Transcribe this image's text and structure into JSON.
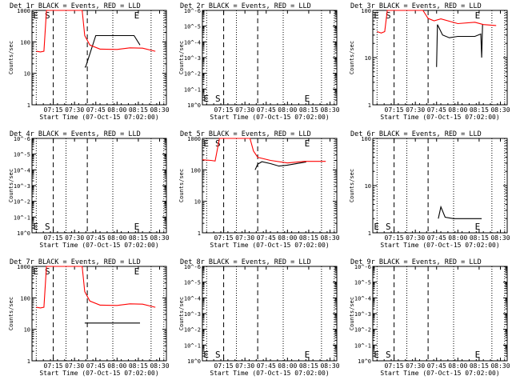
{
  "panels_shared": {
    "ylabel": "Counts/sec",
    "xlabel": "Start Time (07-Oct-15 07:02:00)",
    "x_ticks": [
      "07:15",
      "07:30",
      "07:45",
      "08:00",
      "08:15",
      "08:30"
    ],
    "start_marker": "S",
    "end_marker": "E",
    "colors": {
      "events": "#000000",
      "lld": "#ff0000"
    }
  },
  "chart_data": [
    {
      "type": "line",
      "title": "Det 1r BLACK = Events, RED = LLD",
      "scale": "log",
      "yticks": [
        "1",
        "10",
        "100",
        "1000"
      ],
      "series": [
        {
          "name": "BLACK = Events",
          "points": [
            [
              7.62,
              1.2
            ],
            [
              7.63,
              1.2
            ],
            [
              7.75,
              2.2
            ],
            [
              8.2,
              2.2
            ],
            [
              8.27,
              1.9
            ]
          ]
        },
        {
          "name": "RED = LLD",
          "points": [
            [
              7.05,
              1.7
            ],
            [
              7.1,
              1.68
            ],
            [
              7.14,
              1.7
            ],
            [
              7.17,
              3.0
            ],
            [
              7.18,
              3.0
            ],
            [
              7.59,
              3.0
            ],
            [
              7.62,
              2.2
            ],
            [
              7.68,
              1.9
            ],
            [
              7.8,
              1.77
            ],
            [
              8.0,
              1.76
            ],
            [
              8.15,
              1.81
            ],
            [
              8.3,
              1.8
            ],
            [
              8.45,
              1.7
            ]
          ]
        }
      ]
    },
    {
      "type": "line",
      "title": "Det 2r BLACK = Events, RED = LLD",
      "scale": "log",
      "yticks": [
        "10^0",
        "10^-1",
        "10^-2",
        "10^-3",
        "10^-4",
        "10^-5",
        "10^-6"
      ],
      "series": []
    },
    {
      "type": "line",
      "title": "Det 3r BLACK = Events, RED = LLD",
      "scale": "log",
      "yticks": [
        "1",
        "10",
        "100"
      ],
      "series": [
        {
          "name": "BLACK = Events",
          "points": [
            [
              7.75,
              0.8
            ],
            [
              7.76,
              1.7
            ],
            [
              7.82,
              1.48
            ],
            [
              7.9,
              1.42
            ],
            [
              8.0,
              1.45
            ],
            [
              8.2,
              1.45
            ],
            [
              8.27,
              1.5
            ],
            [
              8.28,
              1.0
            ],
            [
              8.29,
              1.7
            ]
          ]
        },
        {
          "name": "RED = LLD",
          "points": [
            [
              7.05,
              1.55
            ],
            [
              7.1,
              1.52
            ],
            [
              7.14,
              1.55
            ],
            [
              7.17,
              2.0
            ],
            [
              7.59,
              2.0
            ],
            [
              7.65,
              1.83
            ],
            [
              7.72,
              1.78
            ],
            [
              7.8,
              1.82
            ],
            [
              8.0,
              1.72
            ],
            [
              8.2,
              1.75
            ],
            [
              8.3,
              1.7
            ],
            [
              8.45,
              1.68
            ]
          ]
        }
      ]
    },
    {
      "type": "line",
      "title": "Det 4r BLACK = Events, RED = LLD",
      "scale": "log",
      "yticks": [
        "10^0",
        "10^-1",
        "10^-2",
        "10^-3",
        "10^-4",
        "10^-5",
        "10^-6"
      ],
      "series": []
    },
    {
      "type": "line",
      "title": "Det 5r BLACK = Events, RED = LLD",
      "scale": "log",
      "yticks": [
        "1",
        "10",
        "100",
        "1000"
      ],
      "series": [
        {
          "name": "BLACK = Events",
          "points": [
            [
              7.62,
              2.0
            ],
            [
              7.65,
              2.18
            ],
            [
              7.7,
              2.26
            ],
            [
              7.8,
              2.2
            ],
            [
              7.9,
              2.12
            ],
            [
              8.0,
              2.15
            ],
            [
              8.15,
              2.22
            ],
            [
              8.22,
              2.25
            ]
          ]
        },
        {
          "name": "RED = LLD",
          "points": [
            [
              7.0,
              2.32
            ],
            [
              7.1,
              2.3
            ],
            [
              7.15,
              2.28
            ],
            [
              7.2,
              3.0
            ],
            [
              7.56,
              3.0
            ],
            [
              7.6,
              2.6
            ],
            [
              7.65,
              2.4
            ],
            [
              7.8,
              2.3
            ],
            [
              8.0,
              2.22
            ],
            [
              8.2,
              2.27
            ],
            [
              8.45,
              2.27
            ]
          ]
        }
      ]
    },
    {
      "type": "line",
      "title": "Det 6r BLACK = Events, RED = LLD",
      "scale": "log",
      "yticks": [
        "1",
        "10",
        "100"
      ],
      "series": [
        {
          "name": "BLACK = Events",
          "points": [
            [
              7.77,
              0.3
            ],
            [
              7.8,
              0.55
            ],
            [
              7.85,
              0.33
            ],
            [
              7.95,
              0.3
            ],
            [
              8.15,
              0.3
            ],
            [
              8.28,
              0.3
            ]
          ]
        }
      ]
    },
    {
      "type": "line",
      "title": "Det 7r BLACK = Events, RED = LLD",
      "scale": "log",
      "yticks": [
        "1",
        "10",
        "100",
        "1000"
      ],
      "series": [
        {
          "name": "BLACK = Events",
          "points": [
            [
              7.62,
              1.2
            ],
            [
              7.63,
              1.2
            ],
            [
              7.75,
              1.2
            ],
            [
              8.2,
              1.2
            ],
            [
              8.27,
              1.2
            ]
          ]
        },
        {
          "name": "RED = LLD",
          "points": [
            [
              7.05,
              1.7
            ],
            [
              7.1,
              1.68
            ],
            [
              7.14,
              1.7
            ],
            [
              7.17,
              3.0
            ],
            [
              7.18,
              3.0
            ],
            [
              7.59,
              3.0
            ],
            [
              7.62,
              2.2
            ],
            [
              7.68,
              1.9
            ],
            [
              7.8,
              1.77
            ],
            [
              8.0,
              1.76
            ],
            [
              8.15,
              1.81
            ],
            [
              8.3,
              1.8
            ],
            [
              8.45,
              1.7
            ]
          ]
        }
      ]
    },
    {
      "type": "line",
      "title": "Det 8r BLACK = Events, RED = LLD",
      "scale": "log",
      "yticks": [
        "10^0",
        "10^-1",
        "10^-2",
        "10^-3",
        "10^-4",
        "10^-5",
        "10^-6"
      ],
      "series": []
    },
    {
      "type": "line",
      "title": "Det 9r BLACK = Events, RED = LLD",
      "scale": "log",
      "yticks": [
        "10^0",
        "10^-1",
        "10^-2",
        "10^-3",
        "10^-4",
        "10^-5",
        "10^-6"
      ],
      "series": []
    }
  ]
}
